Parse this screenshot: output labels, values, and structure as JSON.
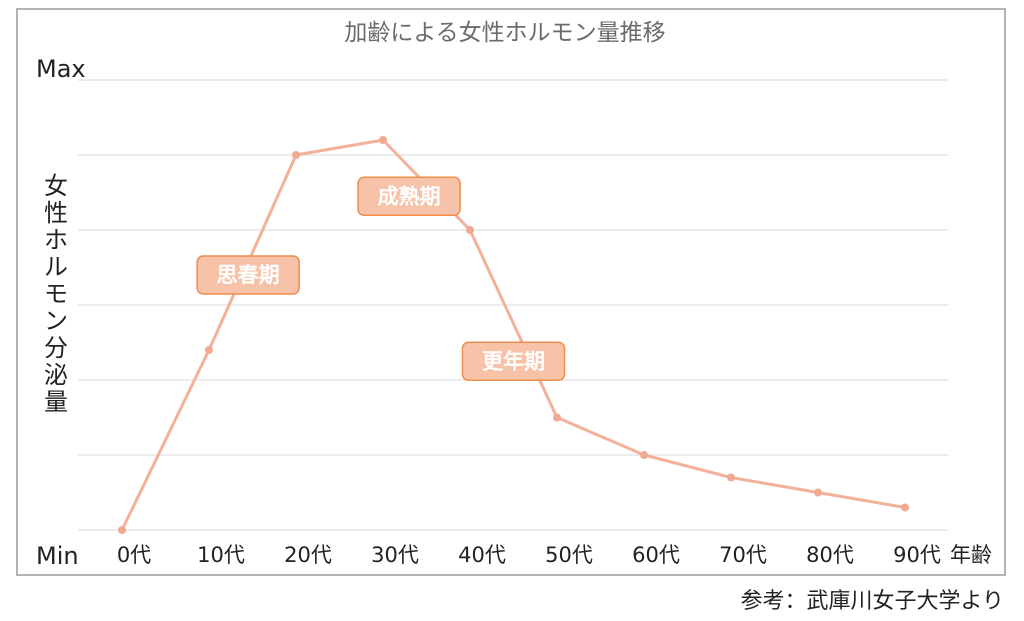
{
  "chart_data": {
    "type": "line",
    "title": "加齢による女性ホルモン量推移",
    "ylabel": "女性ホルモン分泌量",
    "xlabel": "年齢",
    "y_tick_labels": [
      "Max",
      "Min"
    ],
    "ylim": [
      0,
      6
    ],
    "grid": true,
    "categories": [
      "0代",
      "10代",
      "20代",
      "30代",
      "40代",
      "50代",
      "60代",
      "70代",
      "80代",
      "90代"
    ],
    "series": [
      {
        "values": [
          0,
          2.4,
          5.0,
          5.2,
          4.0,
          1.5,
          1.0,
          0.7,
          0.5,
          0.3
        ],
        "color": "#f3b19a"
      }
    ],
    "annotations": [
      {
        "text": "思春期",
        "x": 1.45,
        "y": 3.4
      },
      {
        "text": "成熟期",
        "x": 3.3,
        "y": 4.45
      },
      {
        "text": "更年期",
        "x": 4.5,
        "y": 2.25
      }
    ],
    "annotation_fill": "#f7c3a8",
    "annotation_border": "#ef8d4f"
  },
  "source": "参考：武庫川女子大学より"
}
